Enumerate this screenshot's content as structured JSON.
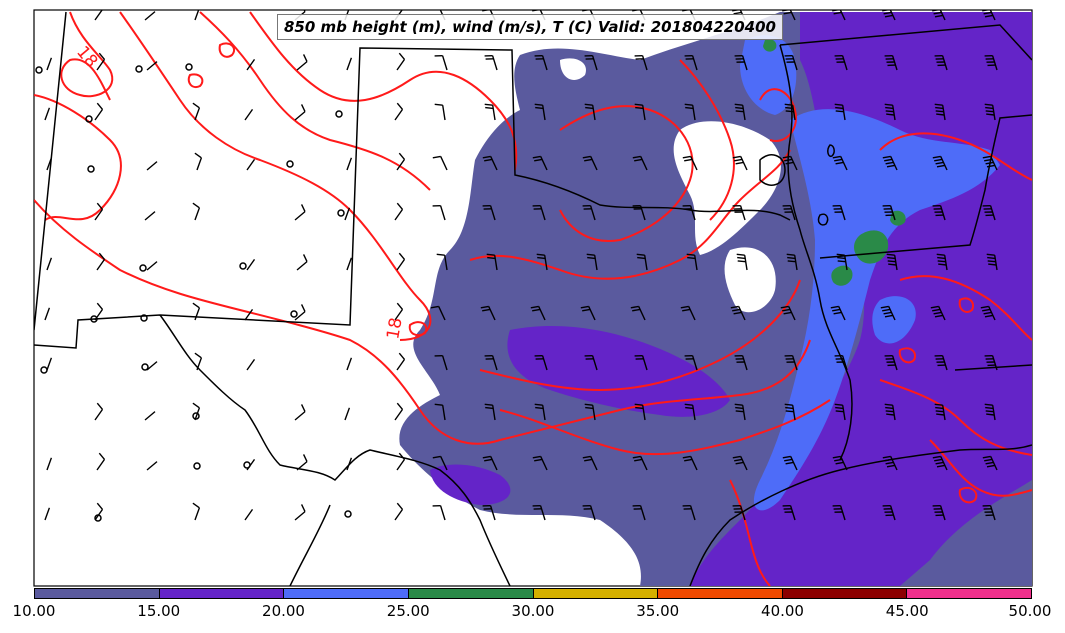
{
  "title": "850 mb height (m), wind (m/s), T (C) Valid: 201804220400",
  "contour_labels": [
    "18",
    "18"
  ],
  "colorbar": {
    "ticks": [
      "10.00",
      "15.00",
      "20.00",
      "25.00",
      "30.00",
      "35.00",
      "40.00",
      "45.00",
      "50.00"
    ],
    "colors": [
      "#5a5a9e",
      "#6424c8",
      "#4e6cf8",
      "#2a8a48",
      "#d4b000",
      "#f04a00",
      "#8c0000",
      "#f0308c"
    ]
  },
  "map_colors": {
    "wind_10_15": "#5a5a9e",
    "wind_15_20": "#6424c8",
    "wind_20_25": "#4e6cf8",
    "wind_25_30": "#2a8a48",
    "temperature_contour": "#ff1a1a",
    "height_contour": "#000000"
  },
  "icons": [
    "wind-barb-icon",
    "calm-wind-circle-icon"
  ]
}
